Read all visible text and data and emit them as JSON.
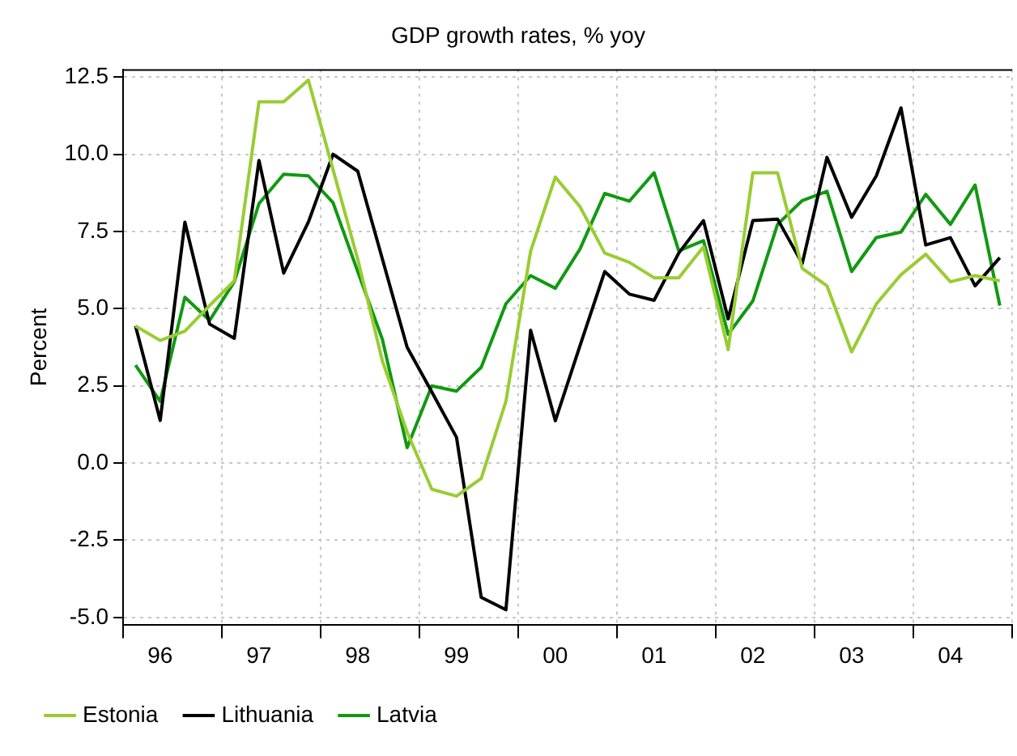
{
  "chart_data": {
    "type": "line",
    "title": "GDP growth rates, % yoy",
    "ylabel": "Percent",
    "categories": [
      null,
      "96",
      null,
      null,
      null,
      "97",
      null,
      null,
      null,
      "98",
      null,
      null,
      null,
      "99",
      null,
      null,
      null,
      "00",
      null,
      null,
      null,
      "01",
      null,
      null,
      null,
      "02",
      null,
      null,
      null,
      "03",
      null,
      null,
      null,
      "04",
      null,
      null
    ],
    "series": [
      {
        "name": "Estonia",
        "color": "#99cc33",
        "values": [
          4.44,
          3.97,
          4.27,
          5.1,
          5.9,
          11.7,
          11.7,
          12.4,
          9.5,
          6.6,
          3.3,
          1.0,
          -0.85,
          -1.07,
          -0.5,
          2.0,
          6.86,
          9.26,
          8.3,
          6.8,
          6.5,
          6.0,
          6.0,
          7.0,
          3.67,
          9.4,
          9.4,
          6.3,
          5.74,
          3.6,
          5.15,
          6.1,
          6.76,
          5.87,
          6.07,
          5.9
        ]
      },
      {
        "name": "Lithuania",
        "color": "#000000",
        "values": [
          4.44,
          1.38,
          7.8,
          4.5,
          4.04,
          9.8,
          6.15,
          7.8,
          10.0,
          9.45,
          6.6,
          3.75,
          2.3,
          0.83,
          -4.35,
          -4.75,
          4.3,
          1.37,
          3.8,
          6.2,
          5.47,
          5.27,
          6.8,
          7.85,
          4.67,
          7.85,
          7.9,
          6.46,
          9.9,
          7.96,
          9.3,
          11.5,
          7.06,
          7.3,
          5.74,
          6.65
        ]
      },
      {
        "name": "Latvia",
        "color": "#119911",
        "values": [
          3.17,
          2.0,
          5.37,
          4.62,
          5.87,
          8.4,
          9.35,
          9.3,
          8.43,
          6.2,
          4.0,
          0.5,
          2.5,
          2.33,
          3.1,
          5.16,
          6.07,
          5.66,
          6.93,
          8.73,
          8.48,
          9.4,
          6.87,
          7.2,
          4.17,
          5.25,
          7.73,
          8.5,
          8.8,
          6.2,
          7.3,
          7.48,
          8.7,
          7.73,
          9.0,
          5.1
        ]
      }
    ],
    "ylim": [
      -5.25,
      12.75
    ],
    "yticks": [
      {
        "value": -5,
        "label": "-5.0"
      },
      {
        "value": -2.5,
        "label": "-2.5"
      },
      {
        "value": 0,
        "label": "0.0"
      },
      {
        "value": 2.5,
        "label": "2.5"
      },
      {
        "value": 5,
        "label": "5.0"
      },
      {
        "value": 7.5,
        "label": "7.5"
      },
      {
        "value": 10,
        "label": "10.0"
      },
      {
        "value": 12.5,
        "label": "12.5"
      }
    ],
    "grid": true,
    "legend": "bottom",
    "marker": "none",
    "line_style": "solid"
  }
}
